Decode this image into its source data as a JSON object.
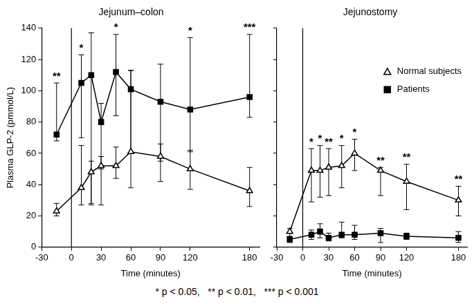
{
  "chart_data": [
    {
      "type": "line",
      "title": "Jejunum–colon",
      "xlabel": "Time (minutes)",
      "ylabel": "Plasma GLP-2 (pmmol/L)",
      "x": [
        -15,
        10,
        20,
        30,
        45,
        60,
        90,
        120,
        180
      ],
      "series": [
        {
          "name": "Normal subjects",
          "color": "#000000",
          "marker": "triangle",
          "line_style": "solid",
          "values": [
            23,
            38,
            48,
            52,
            52,
            61,
            58,
            50,
            36
          ],
          "errors": [
            [
              20,
              28
            ],
            [
              27,
              65
            ],
            [
              28,
              55
            ],
            [
              27,
              58
            ],
            [
              44,
              64
            ],
            [
              38,
              113
            ],
            [
              42,
              66
            ],
            [
              37,
              62
            ],
            [
              26,
              51
            ]
          ]
        },
        {
          "name": "Patients",
          "color": "#000000",
          "marker": "square",
          "line_style": "solid",
          "values": [
            72,
            105,
            110,
            80,
            112,
            101,
            93,
            88,
            96
          ],
          "errors": [
            [
              68,
              105
            ],
            [
              70,
              123
            ],
            [
              27,
              137
            ],
            [
              50,
              92
            ],
            [
              84,
              136
            ],
            [
              60,
              113
            ],
            [
              55,
              117
            ],
            [
              61,
              134
            ],
            [
              83,
              136
            ]
          ]
        }
      ],
      "annotations": [
        {
          "x": -15,
          "text": "**"
        },
        {
          "x": 10,
          "text": "*"
        },
        {
          "x": 45,
          "text": "*"
        },
        {
          "x": 120,
          "text": "*"
        },
        {
          "x": 180,
          "text": "***"
        }
      ],
      "xlim": [
        -30,
        190
      ],
      "xticks": [
        -30,
        0,
        30,
        60,
        90,
        120,
        180
      ],
      "ylim": [
        0,
        140
      ],
      "yticks": [
        0,
        20,
        40,
        60,
        80,
        100,
        120,
        140
      ],
      "grid": false
    },
    {
      "type": "line",
      "title": "Jejunostomy",
      "xlabel": "Time (minutes)",
      "x": [
        -15,
        10,
        20,
        30,
        45,
        60,
        90,
        120,
        180
      ],
      "series": [
        {
          "name": "Normal subjects",
          "color": "#000000",
          "marker": "triangle",
          "line_style": "solid",
          "values": [
            10,
            49,
            49,
            51,
            52,
            60,
            49,
            42,
            30
          ],
          "errors": [
            [
              6,
              12
            ],
            [
              29,
              63
            ],
            [
              32,
              65
            ],
            [
              33,
              63
            ],
            [
              38,
              65
            ],
            [
              49,
              69
            ],
            [
              33,
              51
            ],
            [
              24,
              53
            ],
            [
              20,
              39
            ]
          ]
        },
        {
          "name": "Patients",
          "color": "#000000",
          "marker": "square",
          "line_style": "solid",
          "values": [
            5,
            8,
            10,
            6,
            8,
            8,
            9,
            7,
            6
          ],
          "errors": [
            [
              3,
              7
            ],
            [
              5,
              11
            ],
            [
              6,
              15
            ],
            [
              4,
              9
            ],
            [
              6,
              16
            ],
            [
              5,
              14
            ],
            [
              3,
              12
            ],
            [
              5,
              9
            ],
            [
              3,
              10
            ]
          ]
        }
      ],
      "annotations": [
        {
          "x": 10,
          "text": "*"
        },
        {
          "x": 20,
          "text": "*"
        },
        {
          "x": 30,
          "text": "**"
        },
        {
          "x": 45,
          "text": "*"
        },
        {
          "x": 60,
          "text": "*"
        },
        {
          "x": 90,
          "text": "**"
        },
        {
          "x": 120,
          "text": "**"
        },
        {
          "x": 180,
          "text": "**"
        }
      ],
      "xlim": [
        -30,
        190
      ],
      "xticks": [
        -30,
        0,
        30,
        60,
        90,
        120,
        180
      ],
      "ylim": [
        0,
        140
      ],
      "yticks": [
        0,
        20,
        40,
        60,
        80,
        100,
        120,
        140
      ],
      "grid": false,
      "legend": "top right",
      "tick_labels": "x"
    }
  ],
  "footnote": "* p < 0.05,   ** p < 0.01,   *** p < 0.001"
}
